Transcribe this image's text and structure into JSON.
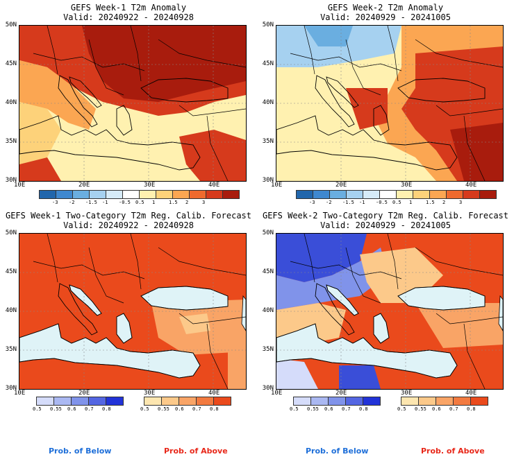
{
  "panels": [
    {
      "id": "p1",
      "title1": "GEFS Week-1 T2m Anomaly",
      "title2": "Valid: 20240922 - 20240928",
      "lats": [
        "50N",
        "45N",
        "40N",
        "35N",
        "30N"
      ],
      "lons": [
        "10E",
        "20E",
        "30E",
        "40E"
      ]
    },
    {
      "id": "p2",
      "title1": "GEFS Week-2 T2m Anomaly",
      "title2": "Valid: 20240929 - 20241005",
      "lats": [
        "50N",
        "45N",
        "40N",
        "35N",
        "30N"
      ],
      "lons": [
        "10E",
        "20E",
        "30E",
        "40E"
      ]
    },
    {
      "id": "p3",
      "title1": "GEFS Week-1 Two-Category T2m Reg. Calib. Forecast",
      "title2": "Valid: 20240922 - 20240928",
      "lats": [
        "50N",
        "45N",
        "40N",
        "35N",
        "30N"
      ],
      "lons": [
        "10E",
        "20E",
        "30E",
        "40E"
      ]
    },
    {
      "id": "p4",
      "title1": "GEFS Week-2 Two-Category T2m Reg. Calib. Forecast",
      "title2": "Valid: 20240929 - 20241005",
      "lats": [
        "50N",
        "45N",
        "40N",
        "35N",
        "30N"
      ],
      "lons": [
        "10E",
        "20E",
        "30E",
        "40E"
      ]
    }
  ],
  "anomaly_colorbar": {
    "ticks": [
      "-3",
      "-2",
      "-1.5",
      "-1",
      "-0.5",
      "0.5",
      "1",
      "1.5",
      "2",
      "3"
    ],
    "colors": [
      "#2166ac",
      "#3f88cf",
      "#6aaee0",
      "#a6d1f0",
      "#d6ebf8",
      "#ffffff",
      "#fff1b0",
      "#fdd27a",
      "#fba652",
      "#ef6a2e",
      "#d63a1c",
      "#a81c0d"
    ]
  },
  "below_colorbar": {
    "ticks": [
      "0.5",
      "0.55",
      "0.6",
      "0.7",
      "0.8"
    ],
    "colors": [
      "#d5dcfa",
      "#aab8f2",
      "#8093ea",
      "#5466e2",
      "#2233d8"
    ]
  },
  "above_colorbar": {
    "ticks": [
      "0.5",
      "0.55",
      "0.6",
      "0.7",
      "0.8"
    ],
    "colors": [
      "#fde6b0",
      "#fcc98a",
      "#f9a466",
      "#f27a40",
      "#ea4a1c"
    ]
  },
  "footer": {
    "below_label": "Prob. of Below",
    "above_label": "Prob. of Above",
    "below_color": "#1e6fd9",
    "above_color": "#e8281a"
  },
  "map_colors": {
    "sea_prob": "#dff3f7",
    "anom_hot": "#a81c0d",
    "anom_warm": "#d63a1c",
    "anom_mid": "#fba652",
    "anom_light": "#fdd27a",
    "anom_pale": "#fff1b0",
    "anom_cool": "#a6d1f0",
    "anom_cold": "#6aaee0",
    "prob_above": "#ea4a1c",
    "prob_above_mid": "#f9a466",
    "prob_above_light": "#fcc98a",
    "prob_below_strong": "#3a4ed8",
    "prob_below": "#8093ea",
    "prob_below_light": "#d5dcfa"
  }
}
